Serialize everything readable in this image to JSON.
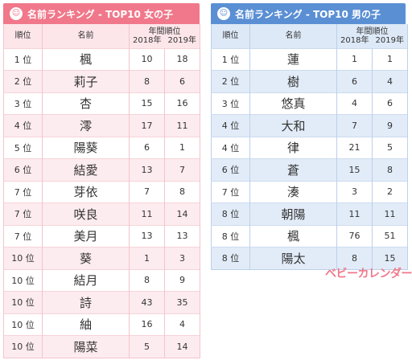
{
  "girls": {
    "title": "名前ランキング - TOP10 女の子",
    "icon": "girl-face-icon",
    "col_rank": "順位",
    "col_name": "名前",
    "col_year_group": "年間順位",
    "col_2018": "2018年",
    "col_2019": "2019年",
    "rows": [
      {
        "rank": "1 位",
        "name": "楓",
        "y2018": "10",
        "y2019": "18"
      },
      {
        "rank": "2 位",
        "name": "莉子",
        "y2018": "8",
        "y2019": "6"
      },
      {
        "rank": "3 位",
        "name": "杏",
        "y2018": "15",
        "y2019": "16"
      },
      {
        "rank": "4 位",
        "name": "澪",
        "y2018": "17",
        "y2019": "11"
      },
      {
        "rank": "5 位",
        "name": "陽葵",
        "y2018": "6",
        "y2019": "1"
      },
      {
        "rank": "6 位",
        "name": "結愛",
        "y2018": "13",
        "y2019": "7"
      },
      {
        "rank": "7 位",
        "name": "芽依",
        "y2018": "7",
        "y2019": "8"
      },
      {
        "rank": "7 位",
        "name": "咲良",
        "y2018": "11",
        "y2019": "14"
      },
      {
        "rank": "7 位",
        "name": "美月",
        "y2018": "13",
        "y2019": "13"
      },
      {
        "rank": "10 位",
        "name": "葵",
        "y2018": "1",
        "y2019": "3"
      },
      {
        "rank": "10 位",
        "name": "結月",
        "y2018": "8",
        "y2019": "9"
      },
      {
        "rank": "10 位",
        "name": "詩",
        "y2018": "43",
        "y2019": "35"
      },
      {
        "rank": "10 位",
        "name": "紬",
        "y2018": "16",
        "y2019": "4"
      },
      {
        "rank": "10 位",
        "name": "陽菜",
        "y2018": "5",
        "y2019": "14"
      }
    ]
  },
  "boys": {
    "title": "名前ランキング - TOP10 男の子",
    "icon": "boy-face-icon",
    "col_rank": "順位",
    "col_name": "名前",
    "col_year_group": "年間順位",
    "col_2018": "2018年",
    "col_2019": "2019年",
    "rows": [
      {
        "rank": "1 位",
        "name": "蓮",
        "y2018": "1",
        "y2019": "1"
      },
      {
        "rank": "2 位",
        "name": "樹",
        "y2018": "6",
        "y2019": "4"
      },
      {
        "rank": "3 位",
        "name": "悠真",
        "y2018": "4",
        "y2019": "6"
      },
      {
        "rank": "4 位",
        "name": "大和",
        "y2018": "7",
        "y2019": "9"
      },
      {
        "rank": "4 位",
        "name": "律",
        "y2018": "21",
        "y2019": "5"
      },
      {
        "rank": "6 位",
        "name": "蒼",
        "y2018": "15",
        "y2019": "8"
      },
      {
        "rank": "7 位",
        "name": "湊",
        "y2018": "3",
        "y2019": "2"
      },
      {
        "rank": "8 位",
        "name": "朝陽",
        "y2018": "11",
        "y2019": "11"
      },
      {
        "rank": "8 位",
        "name": "楓",
        "y2018": "76",
        "y2019": "51"
      },
      {
        "rank": "8 位",
        "name": "陽太",
        "y2018": "8",
        "y2019": "15"
      }
    ]
  },
  "logo": "ベビーカレンダー",
  "colors": {
    "girls_accent": "#f0788a",
    "boys_accent": "#5a8fd4"
  }
}
